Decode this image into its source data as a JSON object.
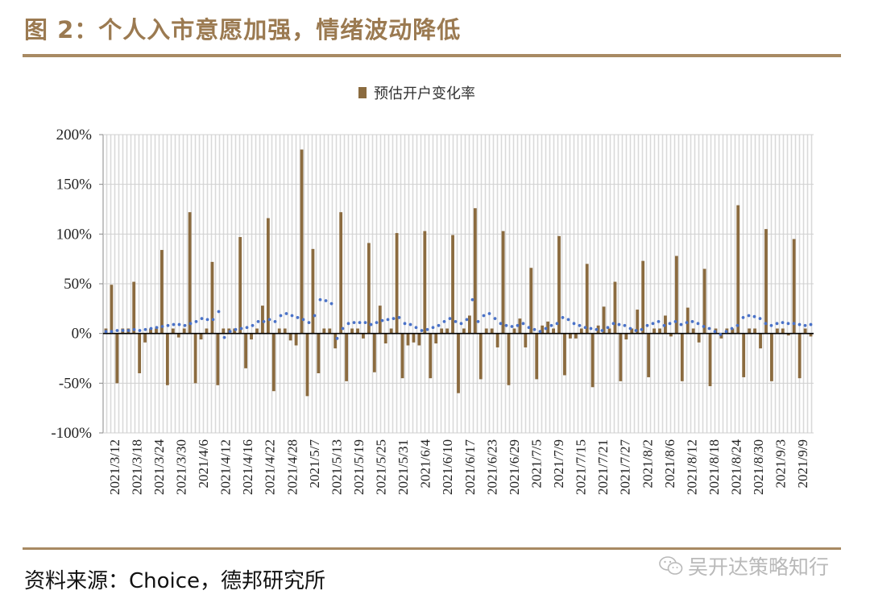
{
  "figure": {
    "title": "图 2：个人入市意愿加强，情绪波动降低",
    "source": "资料来源：Choice，德邦研究所",
    "watermark": "吴开达策略知行"
  },
  "colors": {
    "title": "#9b7a51",
    "bar": "#8b6b3f",
    "dotted_line": "#4a72c8",
    "rule": "#a88a63",
    "hatch": "#cfcfcf"
  },
  "icons": [
    "wechat-icon"
  ],
  "chart_data": {
    "type": "bar",
    "legend": [
      "预估开户变化率"
    ],
    "legend_position": "top-center",
    "grid": true,
    "ylim": [
      -1.0,
      2.0
    ],
    "y_ticks": [
      -1.0,
      -0.5,
      0,
      0.5,
      1.0,
      1.5,
      2.0
    ],
    "y_tick_labels": [
      "-100%",
      "-50%",
      "0%",
      "50%",
      "100%",
      "150%",
      "200%"
    ],
    "x_tick_labels": [
      "2021/3/12",
      "2021/3/18",
      "2021/3/24",
      "2021/3/30",
      "2021/4/6",
      "2021/4/12",
      "2021/4/16",
      "2021/4/22",
      "2021/4/28",
      "2021/5/7",
      "2021/5/13",
      "2021/5/19",
      "2021/5/25",
      "2021/5/31",
      "2021/6/4",
      "2021/6/10",
      "2021/6/17",
      "2021/6/23",
      "2021/6/29",
      "2021/7/5",
      "2021/7/9",
      "2021/7/15",
      "2021/7/21",
      "2021/7/27",
      "2021/8/2",
      "2021/8/6",
      "2021/8/12",
      "2021/8/18",
      "2021/8/24",
      "2021/8/30",
      "2021/9/3",
      "2021/9/9"
    ],
    "series": [
      {
        "name": "预估开户变化率",
        "values": [
          0.05,
          0.49,
          -0.5,
          0.05,
          0.05,
          0.52,
          -0.4,
          -0.09,
          0.05,
          0.05,
          0.84,
          -0.52,
          0.05,
          -0.04,
          0.05,
          1.22,
          -0.5,
          -0.06,
          0.05,
          0.72,
          -0.52,
          0.05,
          0.05,
          0.05,
          0.97,
          -0.35,
          -0.06,
          0.05,
          0.28,
          1.16,
          -0.58,
          0.05,
          0.05,
          -0.07,
          -0.12,
          1.85,
          -0.63,
          0.85,
          -0.4,
          0.05,
          0.05,
          -0.15,
          1.22,
          -0.48,
          0.05,
          0.05,
          -0.05,
          0.91,
          -0.39,
          0.28,
          -0.1,
          0.05,
          1.01,
          -0.45,
          -0.12,
          -0.09,
          -0.12,
          1.03,
          -0.45,
          -0.1,
          0.05,
          0.05,
          0.99,
          -0.6,
          0.05,
          0.18,
          1.26,
          -0.46,
          0.05,
          0.05,
          -0.14,
          1.03,
          -0.52,
          0.05,
          0.15,
          -0.14,
          0.66,
          -0.46,
          0.08,
          0.12,
          0.05,
          0.98,
          -0.42,
          -0.05,
          -0.05,
          0.05,
          0.7,
          -0.54,
          0.08,
          0.27,
          0.05,
          0.52,
          -0.48,
          -0.06,
          0.05,
          0.24,
          0.73,
          -0.44,
          0.05,
          0.05,
          0.18,
          -0.03,
          0.78,
          -0.48,
          0.26,
          0.05,
          -0.09,
          0.65,
          -0.53,
          0.05,
          -0.05,
          0.05,
          0.05,
          1.29,
          -0.44,
          0.05,
          0.05,
          -0.15,
          1.05,
          -0.48,
          0.05,
          0.05,
          -0.02,
          0.95,
          -0.45,
          0.05,
          -0.03
        ]
      },
      {
        "name": "",
        "style": "dotted",
        "values": [
          0.02,
          0.02,
          0.03,
          0.03,
          0.03,
          0.04,
          0.03,
          0.04,
          0.05,
          0.06,
          0.07,
          0.08,
          0.09,
          0.09,
          0.08,
          0.1,
          0.12,
          0.15,
          0.14,
          0.14,
          0.22,
          -0.04,
          0.02,
          0.04,
          0.05,
          0.06,
          0.08,
          0.12,
          0.12,
          0.14,
          0.12,
          0.18,
          0.2,
          0.18,
          0.16,
          0.14,
          0.11,
          0.18,
          0.34,
          0.33,
          0.3,
          -0.05,
          0.05,
          0.1,
          0.11,
          0.11,
          0.11,
          0.09,
          0.11,
          0.13,
          0.14,
          0.15,
          0.16,
          0.1,
          0.09,
          0.06,
          0.03,
          0.04,
          0.06,
          0.08,
          0.12,
          0.15,
          0.12,
          0.1,
          0.14,
          0.34,
          0.12,
          0.18,
          0.2,
          0.15,
          0.1,
          0.08,
          0.07,
          0.08,
          0.1,
          0.06,
          0.04,
          0.02,
          0.05,
          0.08,
          0.1,
          0.16,
          0.14,
          0.1,
          0.08,
          0.06,
          0.05,
          0.04,
          0.03,
          0.06,
          0.1,
          0.09,
          0.08,
          0.05,
          0.03,
          0.04,
          0.08,
          0.1,
          0.12,
          0.08,
          0.1,
          0.12,
          0.09,
          0.11,
          0.12,
          0.1,
          0.07,
          0.05,
          0.02,
          -0.01,
          0.02,
          0.05,
          0.08,
          0.16,
          0.18,
          0.17,
          0.15,
          0.1,
          0.08,
          0.1,
          0.11,
          0.1,
          0.1,
          0.09,
          0.08,
          0.09
        ]
      }
    ]
  }
}
